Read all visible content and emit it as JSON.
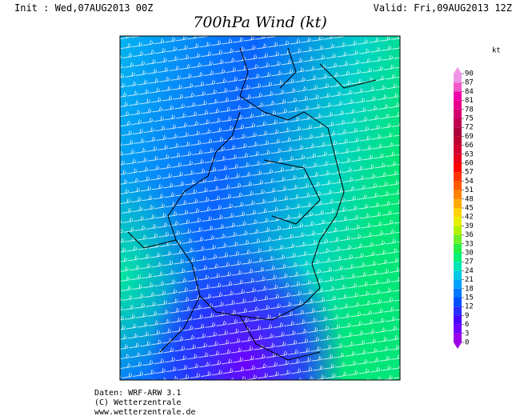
{
  "header": {
    "init": "Init : Wed,07AUG2013 00Z",
    "valid": "Valid: Fri,09AUG2013 12Z",
    "title": "700hPa Wind (kt)"
  },
  "legend": {
    "unit": "kt",
    "ticks": [
      0,
      3,
      6,
      9,
      12,
      15,
      18,
      21,
      24,
      27,
      30,
      33,
      36,
      39,
      42,
      45,
      48,
      51,
      54,
      57,
      60,
      63,
      66,
      69,
      72,
      75,
      78,
      81,
      84,
      87,
      90
    ],
    "colors": [
      "#9b00e6",
      "#6e00ff",
      "#4b00ff",
      "#2b2bff",
      "#0050ff",
      "#0078ff",
      "#00a0ff",
      "#00c8e6",
      "#00e6b4",
      "#00f078",
      "#28f046",
      "#6ef028",
      "#b4f000",
      "#e6f000",
      "#ffd200",
      "#ffaa00",
      "#ff8200",
      "#ff5a00",
      "#ff3200",
      "#ff0000",
      "#e6001e",
      "#d20032",
      "#be0032",
      "#aa003c",
      "#be0050",
      "#d2006e",
      "#e6008c",
      "#f000aa",
      "#f05ac8",
      "#f096e6"
    ]
  },
  "footer": {
    "lines": [
      "Daten: WRF-ARW 3.1",
      "(C) Wetterzentrale",
      "www.wetterzentrale.de"
    ]
  }
}
